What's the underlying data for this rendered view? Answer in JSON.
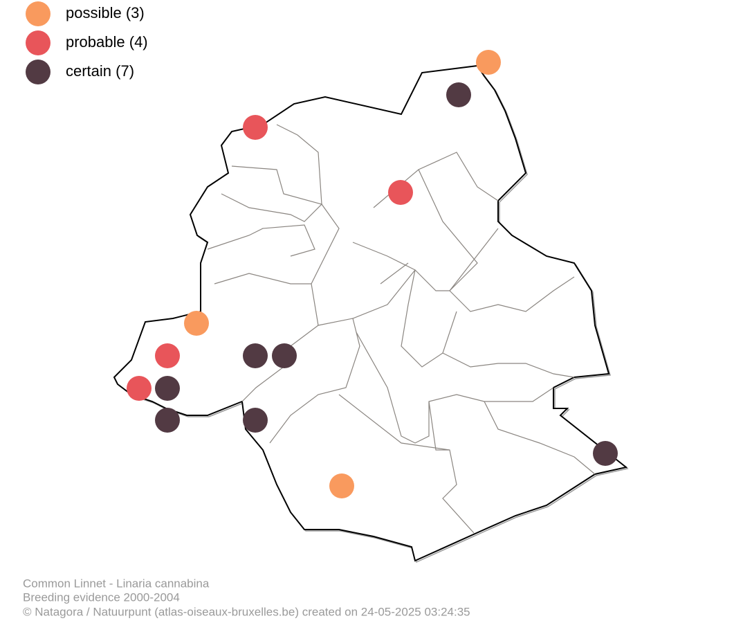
{
  "legend": [
    {
      "label": "possible (3)",
      "color": "#f99a5e"
    },
    {
      "label": "probable (4)",
      "color": "#e8555a"
    },
    {
      "label": "certain (7)",
      "color": "#523a43"
    }
  ],
  "footer": [
    "Common Linnet - Linaria cannabina",
    "Breeding evidence 2000-2004",
    "© Natagora / Natuurpunt (atlas-oiseaux-bruxelles.be) created on 24-05-2025 03:24:35"
  ]
}
